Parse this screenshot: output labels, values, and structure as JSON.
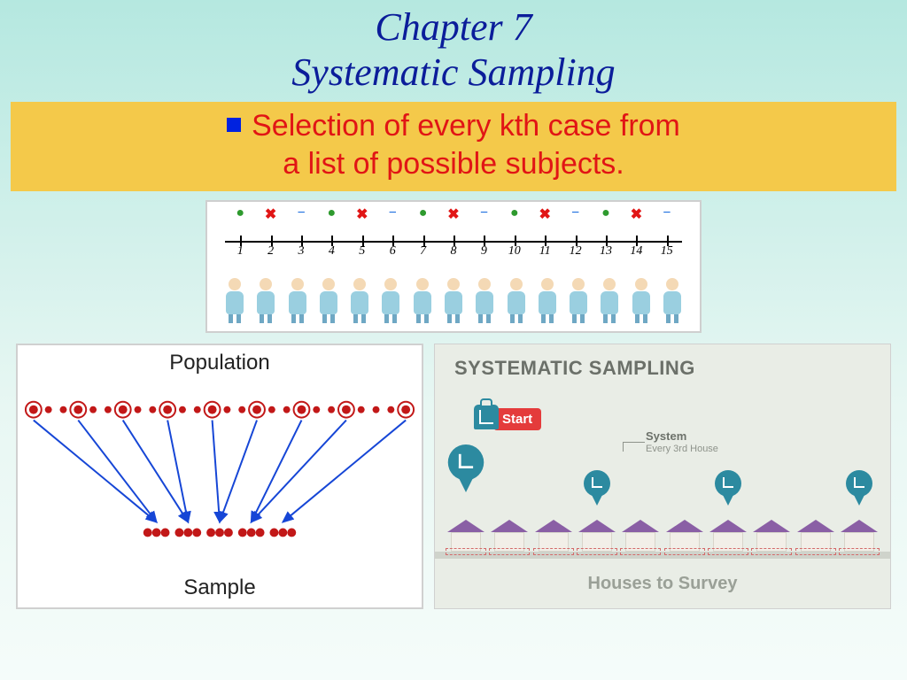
{
  "title": {
    "line1": "Chapter 7",
    "line2": "Systematic Sampling",
    "color": "#0b1d9a",
    "fontsize": 44
  },
  "definition": {
    "bullet_color": "#0022e0",
    "text_color": "#e11515",
    "bg_color": "#f4c94a",
    "line1": "Selection of every kth case from",
    "line2": "a list of possible subjects."
  },
  "numberline": {
    "count": 15,
    "labels": [
      "1",
      "2",
      "3",
      "4",
      "5",
      "6",
      "7",
      "8",
      "9",
      "10",
      "11",
      "12",
      "13",
      "14",
      "15"
    ],
    "symbols": [
      "dot",
      "x",
      "dash",
      "dot",
      "x",
      "dash",
      "dot",
      "x",
      "dash",
      "dot",
      "x",
      "dash",
      "dot",
      "x",
      "dash"
    ],
    "symbol_colors": {
      "dot": "#2e9a2e",
      "x": "#e11515",
      "dash": "#1e6fe0"
    },
    "person_body_color": "#9acfe0"
  },
  "population_sample": {
    "title_top": "Population",
    "title_bottom": "Sample",
    "total": 26,
    "selected_indices": [
      0,
      3,
      6,
      9,
      12,
      15,
      18,
      21,
      25
    ],
    "dot_color": "#c21818",
    "ring_color": "#c21818",
    "arrow_color": "#1646d6",
    "sample_groups": [
      3,
      3,
      3,
      3,
      3
    ]
  },
  "houses": {
    "heading": "SYSTEMATIC SAMPLING",
    "start_label": "Start",
    "footer": "Houses to Survey",
    "system_label_title": "System",
    "system_label_sub": "Every 3rd House",
    "count": 10,
    "selected_pad": [
      0,
      1,
      2,
      3,
      4,
      5,
      6,
      7,
      8,
      9
    ],
    "balloon_indices": [
      0,
      3,
      6,
      9
    ],
    "roof_color": "#8a5fa5",
    "balloon_color": "#2c8aa0",
    "start_color": "#e43b3b",
    "bg_color": "#e9ede6"
  }
}
